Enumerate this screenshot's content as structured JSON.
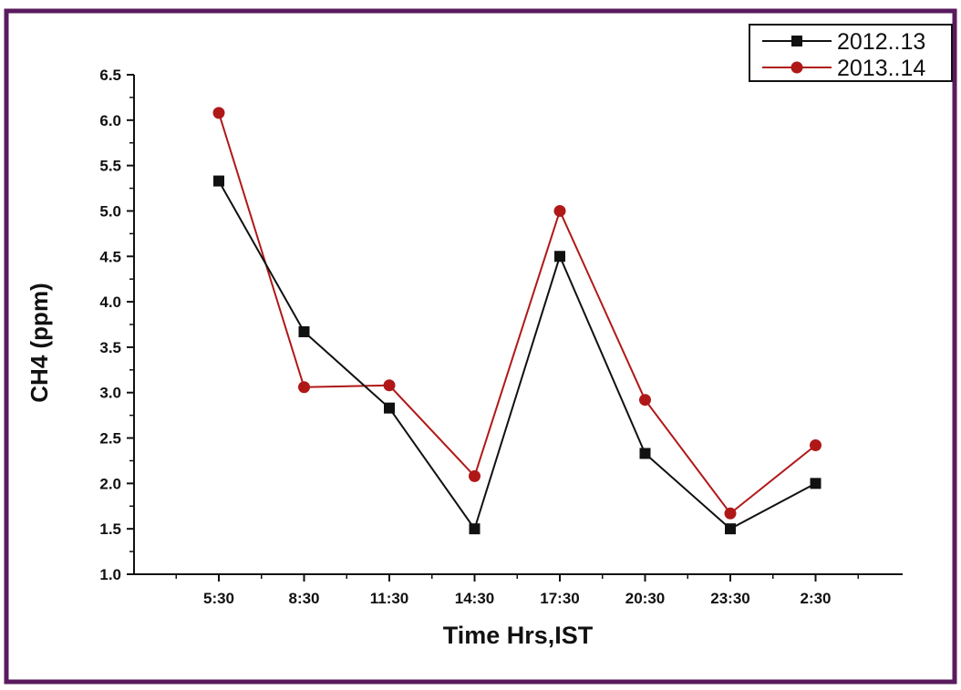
{
  "colors": {
    "border": "#5a1a5e",
    "series_2012": "#111111",
    "series_2013": "#b01818",
    "axis": "#111111"
  },
  "chart_data": {
    "type": "line",
    "xlabel": "Time Hrs,IST",
    "ylabel": "CH4 (ppm)",
    "categories": [
      "5:30",
      "8:30",
      "11:30",
      "14:30",
      "17:30",
      "20:30",
      "23:30",
      "2:30"
    ],
    "ylim": [
      1.0,
      6.5
    ],
    "yticks": [
      "1.0",
      "1.5",
      "2.0",
      "2.5",
      "3.0",
      "3.5",
      "4.0",
      "4.5",
      "5.0",
      "5.5",
      "6.0",
      "6.5"
    ],
    "legend_position": "top-right",
    "grid": false,
    "series": [
      {
        "name": "2012..13",
        "marker": "square",
        "color": "#111111",
        "values": [
          5.33,
          3.67,
          2.83,
          1.5,
          4.5,
          2.33,
          1.5,
          2.0
        ]
      },
      {
        "name": "2013..14",
        "marker": "circle",
        "color": "#b01818",
        "values": [
          6.08,
          3.06,
          3.08,
          2.08,
          5.0,
          2.92,
          1.67,
          2.42
        ]
      }
    ]
  }
}
